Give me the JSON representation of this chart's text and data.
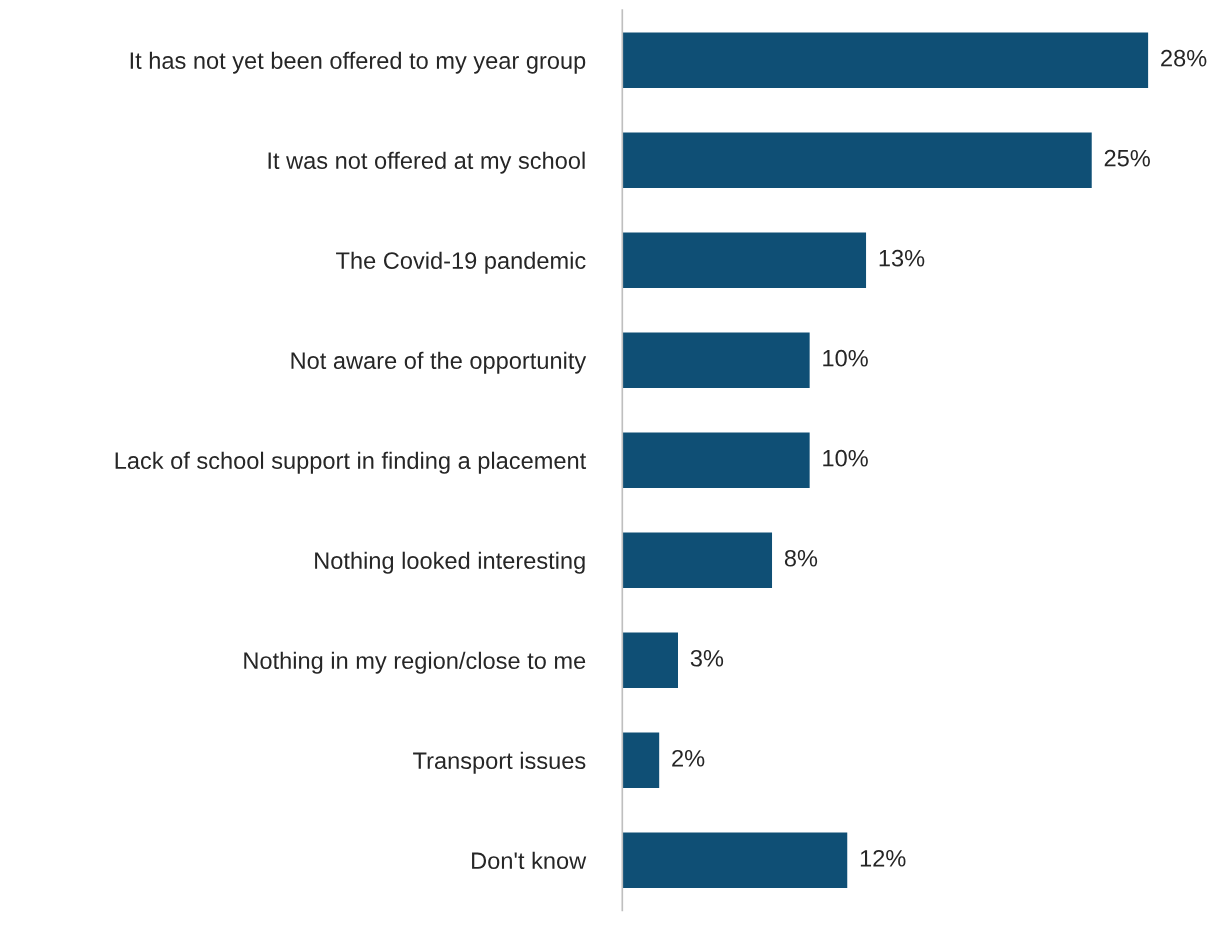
{
  "chart_data": {
    "type": "bar",
    "orientation": "horizontal",
    "categories": [
      "It has not yet been offered to my year group",
      "It was not offered at my school",
      "The Covid-19 pandemic",
      "Not aware of the opportunity",
      "Lack of school support in finding a placement",
      "Nothing looked interesting",
      "Nothing in my region/close to me",
      "Transport issues",
      "Don't know"
    ],
    "values": [
      28,
      25,
      13,
      10,
      10,
      8,
      3,
      2,
      12
    ],
    "value_labels": [
      "28%",
      "25%",
      "13%",
      "10%",
      "10%",
      "8%",
      "3%",
      "2%",
      "12%"
    ],
    "color": "#0f4f75",
    "tick_labels": "y",
    "grid": false,
    "legend": false
  }
}
